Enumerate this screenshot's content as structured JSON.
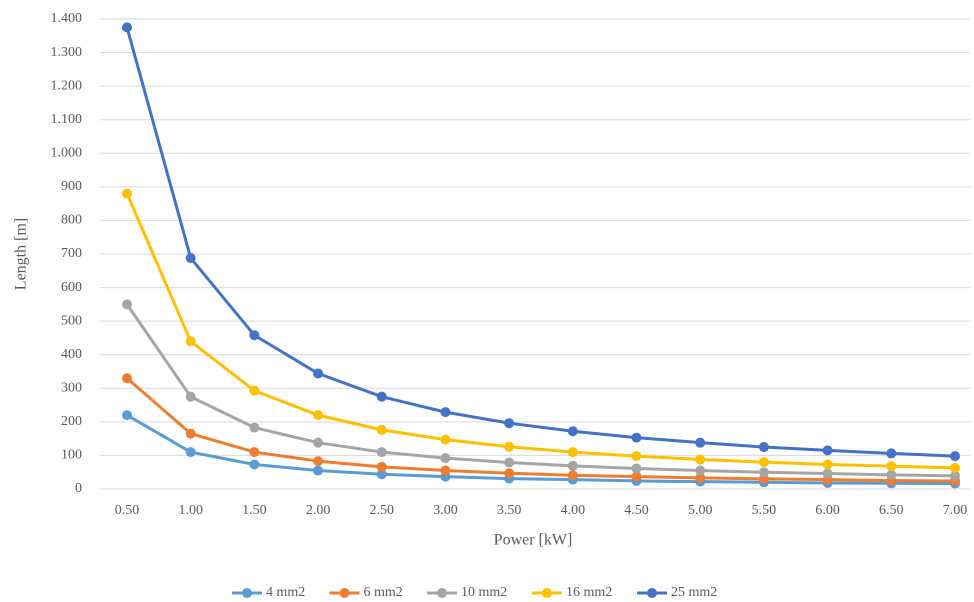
{
  "chart_data": {
    "type": "line",
    "x_label": "Power [kW]",
    "y_label": "Length [m]",
    "categories": [
      "0.50",
      "1.00",
      "1.50",
      "2.00",
      "2.50",
      "3.00",
      "3.50",
      "4.00",
      "4.50",
      "5.00",
      "5.50",
      "6.00",
      "6.50",
      "7.00"
    ],
    "series": [
      {
        "name": "4 mm2",
        "color": "#5b9bd5",
        "values": [
          220,
          110,
          73,
          55,
          44,
          37,
          31,
          28,
          24,
          22,
          20,
          18,
          17,
          16
        ]
      },
      {
        "name": "6 mm2",
        "color": "#ed7d31",
        "values": [
          330,
          165,
          110,
          83,
          66,
          55,
          47,
          41,
          37,
          33,
          30,
          28,
          25,
          24
        ]
      },
      {
        "name": "10 mm2",
        "color": "#a5a5a5",
        "values": [
          550,
          275,
          183,
          138,
          110,
          92,
          79,
          69,
          61,
          55,
          50,
          46,
          42,
          39
        ]
      },
      {
        "name": "16 mm2",
        "color": "#ffc000",
        "values": [
          880,
          440,
          293,
          220,
          176,
          147,
          126,
          110,
          98,
          88,
          80,
          73,
          68,
          63
        ]
      },
      {
        "name": "25 mm2",
        "color": "#4472c4",
        "values": [
          1375,
          688,
          458,
          344,
          275,
          229,
          196,
          172,
          153,
          138,
          125,
          115,
          106,
          98
        ]
      }
    ],
    "ylim": [
      0,
      1400
    ],
    "yticks": [
      0,
      100,
      200,
      300,
      400,
      500,
      600,
      700,
      800,
      900,
      {
        "value": 1000,
        "label": "1.000"
      },
      {
        "value": 1100,
        "label": "1.100"
      },
      {
        "value": 1200,
        "label": "1.200"
      },
      {
        "value": 1300,
        "label": "1.300"
      },
      {
        "value": 1400,
        "label": "1.400"
      }
    ],
    "grid": true,
    "legend": "bottom"
  }
}
